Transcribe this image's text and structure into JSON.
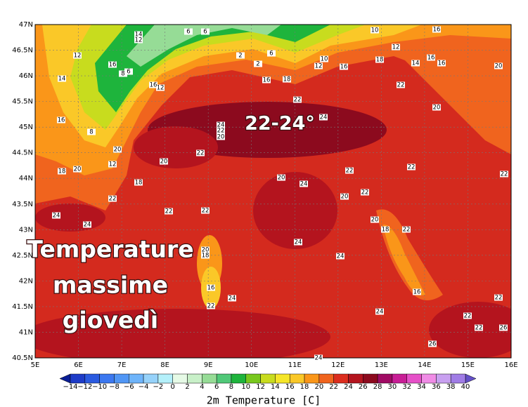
{
  "map": {
    "lat_ticks": [
      {
        "value": 47,
        "label": "47N"
      },
      {
        "value": 46.5,
        "label": "46.5N"
      },
      {
        "value": 46,
        "label": "46N"
      },
      {
        "value": 45.5,
        "label": "45.5N"
      },
      {
        "value": 45,
        "label": "45N"
      },
      {
        "value": 44.5,
        "label": "44.5N"
      },
      {
        "value": 44,
        "label": "44N"
      },
      {
        "value": 43.5,
        "label": "43.5N"
      },
      {
        "value": 43,
        "label": "43N"
      },
      {
        "value": 42.5,
        "label": "42.5N"
      },
      {
        "value": 42,
        "label": "42N"
      },
      {
        "value": 41.5,
        "label": "41.5N"
      },
      {
        "value": 41,
        "label": "41N"
      },
      {
        "value": 40.5,
        "label": "40.5N"
      }
    ],
    "lon_ticks": [
      {
        "value": 5,
        "label": "5E"
      },
      {
        "value": 6,
        "label": "6E"
      },
      {
        "value": 7,
        "label": "7E"
      },
      {
        "value": 8,
        "label": "8E"
      },
      {
        "value": 9,
        "label": "9E"
      },
      {
        "value": 10,
        "label": "10E"
      },
      {
        "value": 11,
        "label": "11E"
      },
      {
        "value": 12,
        "label": "12E"
      },
      {
        "value": 13,
        "label": "13E"
      },
      {
        "value": 14,
        "label": "14E"
      },
      {
        "value": 15,
        "label": "15E"
      },
      {
        "value": 16,
        "label": "16E"
      }
    ],
    "labels": [
      "14",
      "12",
      "6",
      "6",
      "10",
      "16",
      "12",
      "16",
      "8",
      "6",
      "14",
      "12",
      "16",
      "2",
      "2",
      "6",
      "10",
      "12",
      "16",
      "18",
      "12",
      "16",
      "14",
      "16",
      "20",
      "18",
      "16",
      "22",
      "24",
      "22",
      "20",
      "16",
      "8",
      "20",
      "12",
      "20",
      "22",
      "24",
      "22",
      "20",
      "18",
      "20",
      "18",
      "22",
      "22",
      "22",
      "24",
      "24",
      "22",
      "22",
      "22",
      "20",
      "22",
      "20",
      "18",
      "22",
      "20",
      "24",
      "24",
      "24",
      "20",
      "18",
      "16",
      "22",
      "24",
      "24",
      "16",
      "22",
      "22",
      "22",
      "26",
      "26",
      "24"
    ],
    "overlay_title": "22-24°",
    "caption": [
      "Temperature",
      "massime",
      "giovedì"
    ]
  },
  "colorbar": {
    "title": "2m Temperature [C]",
    "ticks": [
      {
        "value": -14,
        "label": "−14"
      },
      {
        "value": -12,
        "label": "−12"
      },
      {
        "value": -10,
        "label": "−10"
      },
      {
        "value": -8,
        "label": "−8"
      },
      {
        "value": -6,
        "label": "−6"
      },
      {
        "value": -4,
        "label": "−4"
      },
      {
        "value": -2,
        "label": "−2"
      },
      0,
      2,
      4,
      6,
      8,
      10,
      12,
      14,
      16,
      18,
      20,
      22,
      24,
      26,
      28,
      30,
      32,
      34,
      36,
      38,
      40
    ],
    "colors": [
      "#1e3cc8",
      "#2a5ae0",
      "#3c78f0",
      "#5096f5",
      "#6eb4fa",
      "#96d2fa",
      "#b4f0fa",
      "#e6fae6",
      "#c8f0c8",
      "#96dc96",
      "#50c878",
      "#1eb43c",
      "#78c81e",
      "#c8dc1e",
      "#f5e628",
      "#fac828",
      "#fa9619",
      "#f0641e",
      "#dc2d1e",
      "#b4141e",
      "#8c0a1e",
      "#a00a64",
      "#c81e96",
      "#e650c8",
      "#f08ce6",
      "#c8a0f0",
      "#a07ce6"
    ],
    "under_color": "#0a1e96",
    "over_color": "#6450c8"
  }
}
